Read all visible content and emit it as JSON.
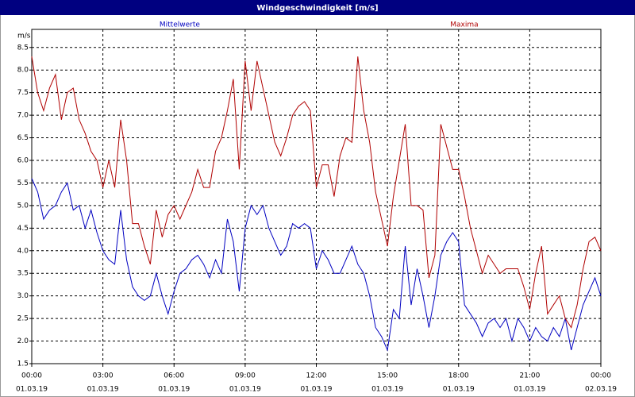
{
  "chart_data": {
    "type": "line",
    "title": "Windgeschwindigkeit [m/s]",
    "y_label": "m/s",
    "x": [
      0,
      0.25,
      0.5,
      0.75,
      1,
      1.25,
      1.5,
      1.75,
      2,
      2.25,
      2.5,
      2.75,
      3,
      3.25,
      3.5,
      3.75,
      4,
      4.25,
      4.5,
      4.75,
      5,
      5.25,
      5.5,
      5.75,
      6,
      6.25,
      6.5,
      6.75,
      7,
      7.25,
      7.5,
      7.75,
      8,
      8.25,
      8.5,
      8.75,
      9,
      9.25,
      9.5,
      9.75,
      10,
      10.25,
      10.5,
      10.75,
      11,
      11.25,
      11.5,
      11.75,
      12,
      12.25,
      12.5,
      12.75,
      13,
      13.25,
      13.5,
      13.75,
      14,
      14.25,
      14.5,
      14.75,
      15,
      15.25,
      15.5,
      15.75,
      16,
      16.25,
      16.5,
      16.75,
      17,
      17.25,
      17.5,
      17.75,
      18,
      18.25,
      18.5,
      18.75,
      19,
      19.25,
      19.5,
      19.75,
      20,
      20.25,
      20.5,
      20.75,
      21,
      21.25,
      21.5,
      21.75,
      22,
      22.25,
      22.5,
      22.75,
      23,
      23.25,
      23.5,
      23.75,
      24
    ],
    "series": [
      {
        "name": "Mittelwerte",
        "color": "#0000c0",
        "values": [
          5.6,
          5.3,
          4.7,
          4.9,
          5.0,
          5.3,
          5.5,
          4.9,
          5.0,
          4.5,
          4.9,
          4.4,
          4.0,
          3.8,
          3.7,
          4.9,
          3.8,
          3.2,
          3.0,
          2.9,
          3.0,
          3.5,
          3.0,
          2.6,
          3.1,
          3.5,
          3.6,
          3.8,
          3.9,
          3.7,
          3.4,
          3.8,
          3.5,
          4.7,
          4.2,
          3.1,
          4.5,
          5.0,
          4.8,
          5.0,
          4.5,
          4.2,
          3.9,
          4.1,
          4.6,
          4.5,
          4.6,
          4.5,
          3.6,
          4.0,
          3.8,
          3.5,
          3.5,
          3.8,
          4.1,
          3.7,
          3.5,
          3.0,
          2.3,
          2.1,
          1.8,
          2.7,
          2.5,
          4.1,
          2.8,
          3.6,
          3.0,
          2.3,
          3.0,
          3.9,
          4.2,
          4.4,
          4.2,
          2.8,
          2.6,
          2.4,
          2.1,
          2.4,
          2.5,
          2.3,
          2.5,
          2.0,
          2.5,
          2.3,
          2.0,
          2.3,
          2.1,
          2.0,
          2.3,
          2.1,
          2.5,
          1.8,
          2.3,
          2.8,
          3.1,
          3.4,
          3.0
        ]
      },
      {
        "name": "Maxima",
        "color": "#b00000",
        "values": [
          8.3,
          7.5,
          7.1,
          7.6,
          7.9,
          6.9,
          7.5,
          7.6,
          6.9,
          6.6,
          6.2,
          6.0,
          5.4,
          6.0,
          5.4,
          6.9,
          6.0,
          4.6,
          4.6,
          4.1,
          3.7,
          4.9,
          4.3,
          4.8,
          5.0,
          4.7,
          5.0,
          5.3,
          5.8,
          5.4,
          5.4,
          6.2,
          6.5,
          7.1,
          7.8,
          5.8,
          8.2,
          7.1,
          8.2,
          7.6,
          7.0,
          6.4,
          6.1,
          6.5,
          7.0,
          7.2,
          7.3,
          7.1,
          5.4,
          5.9,
          5.9,
          5.2,
          6.1,
          6.5,
          6.4,
          8.3,
          7.1,
          6.4,
          5.3,
          4.7,
          4.1,
          5.2,
          6.0,
          6.8,
          5.0,
          5.0,
          4.9,
          3.4,
          3.9,
          6.8,
          6.3,
          5.8,
          5.8,
          5.2,
          4.5,
          4.0,
          3.5,
          3.9,
          3.7,
          3.5,
          3.6,
          3.6,
          3.6,
          3.2,
          2.7,
          3.5,
          4.1,
          2.6,
          2.8,
          3.0,
          2.5,
          2.3,
          2.8,
          3.6,
          4.2,
          4.3,
          4.0
        ]
      }
    ],
    "xlim": [
      0,
      24
    ],
    "xticks": [
      {
        "value": 0,
        "label": "00:00"
      },
      {
        "value": 3,
        "label": "03:00"
      },
      {
        "value": 6,
        "label": "06:00"
      },
      {
        "value": 9,
        "label": "09:00"
      },
      {
        "value": 12,
        "label": "12:00"
      },
      {
        "value": 15,
        "label": "15:00"
      },
      {
        "value": 18,
        "label": "18:00"
      },
      {
        "value": 21,
        "label": "21:00"
      },
      {
        "value": 24,
        "label": "00:00"
      }
    ],
    "xtick_dates": [
      "01.03.19",
      "01.03.19",
      "01.03.19",
      "01.03.19",
      "01.03.19",
      "01.03.19",
      "01.03.19",
      "01.03.19",
      "02.03.19"
    ],
    "ylim": [
      1.5,
      8.9
    ],
    "yticks": [
      1.5,
      {
        "value": 2,
        "label": "2.0"
      },
      2.5,
      {
        "value": 3,
        "label": "3.0"
      },
      3.5,
      {
        "value": 4,
        "label": "4.0"
      },
      4.5,
      {
        "value": 5,
        "label": "5.0"
      },
      5.5,
      {
        "value": 6,
        "label": "6.0"
      },
      6.5,
      {
        "value": 7,
        "label": "7.0"
      },
      7.5,
      {
        "value": 8,
        "label": "8.0"
      },
      8.5
    ],
    "grid": true
  }
}
